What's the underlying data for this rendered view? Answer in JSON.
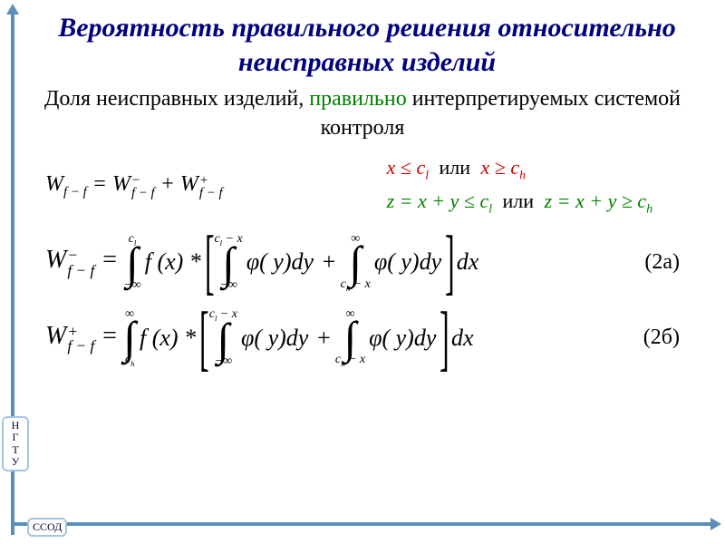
{
  "title": {
    "text": "Вероятность правильного решения относительно неисправных изделий",
    "color": "#000080",
    "fontsize": 30
  },
  "subtitle": {
    "part1": "Доля неисправных изделий, ",
    "highlight": "правильно",
    "part2": " интерпретируемых системой контроля",
    "color_main": "#000000",
    "color_highlight": "#008000",
    "fontsize": 24
  },
  "eq_sum": {
    "lhs": "W",
    "lhs_sub": "f − f",
    "eq": " = ",
    "t1": "W",
    "t1_sup": "−",
    "t1_sub": "f − f",
    "plus": " + ",
    "t2": "W",
    "t2_sup": "+",
    "t2_sub": "f − f"
  },
  "conditions": {
    "line1_a": "x ≤ c",
    "line1_a_sub": "l",
    "or": "или",
    "line1_b": "x ≥ c",
    "line1_b_sub": "h",
    "line2_a": "z = x + y ≤ c",
    "line2_a_sub": "l",
    "line2_b": "z = x + y ≥ c",
    "line2_b_sub": "h",
    "color_x": "#cc0000",
    "color_z": "#008000"
  },
  "formula_2a": {
    "lhs_var": "W",
    "lhs_sup": "−",
    "lhs_sub": "f − f",
    "eq": " = ",
    "outer_top": "c",
    "outer_top_sub": "l",
    "outer_bot": "−∞",
    "fx": "f (x) *",
    "inner1_top": "c  − x",
    "inner1_top_sub": "l",
    "inner1_bot": "−∞",
    "phi": "φ( y)dy",
    "plus": " + ",
    "inner2_top": "∞",
    "inner2_bot": "c  − x",
    "inner2_bot_sub": "h",
    "dx": "dx",
    "label": "(2а)"
  },
  "formula_2b": {
    "lhs_var": "W",
    "lhs_sup": "+",
    "lhs_sub": "f − f",
    "eq": " = ",
    "outer_top": "∞",
    "outer_bot": "c",
    "outer_bot_sub": "h",
    "fx": "f (x) *",
    "inner1_top": "c  − x",
    "inner1_top_sub": "l",
    "inner1_bot": "−∞",
    "phi": "φ( y)dy",
    "plus": " + ",
    "inner2_top": "∞",
    "inner2_bot": "c  − x",
    "inner2_bot_sub": "h",
    "dx": "dx",
    "label": "(2б)"
  },
  "badges": {
    "vertical": "Н\nГ\nТ\nУ",
    "horizontal": "ССОД"
  },
  "frame_color": "#5b8fb9"
}
